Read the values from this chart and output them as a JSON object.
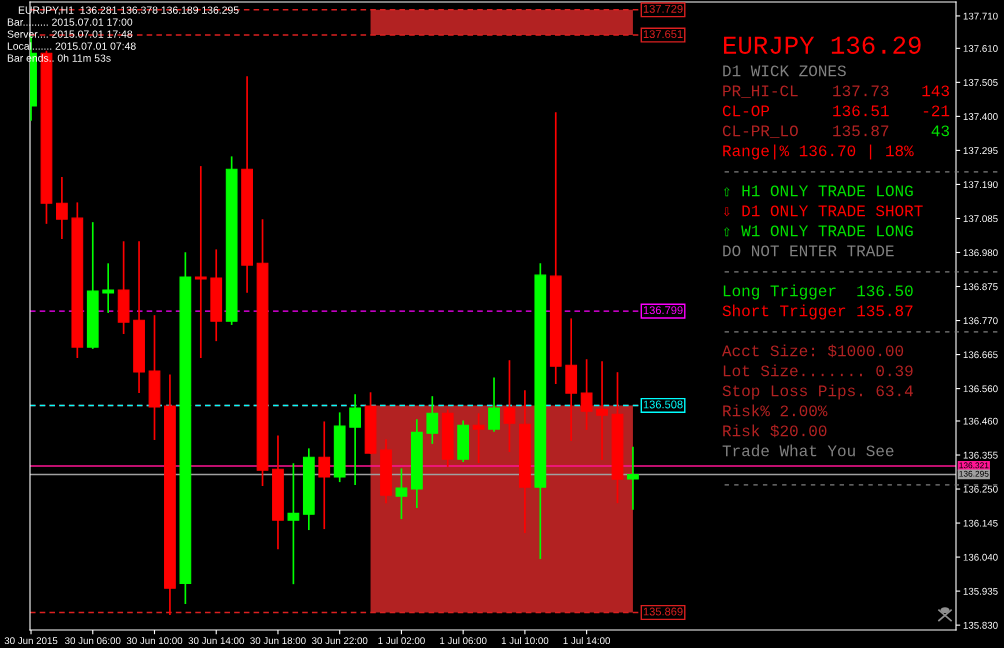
{
  "chart_data": {
    "type": "candlestick",
    "title": "EURJPY,H1  136.281 136.378 136.189 136.295",
    "x": [
      "2015-06-30T02:00",
      "2015-06-30T03:00",
      "2015-06-30T04:00",
      "2015-06-30T05:00",
      "2015-06-30T06:00",
      "2015-06-30T07:00",
      "2015-06-30T08:00",
      "2015-06-30T09:00",
      "2015-06-30T10:00",
      "2015-06-30T11:00",
      "2015-06-30T12:00",
      "2015-06-30T13:00",
      "2015-06-30T14:00",
      "2015-06-30T15:00",
      "2015-06-30T16:00",
      "2015-06-30T17:00",
      "2015-06-30T18:00",
      "2015-06-30T19:00",
      "2015-06-30T20:00",
      "2015-06-30T21:00",
      "2015-06-30T22:00",
      "2015-06-30T23:00",
      "2015-07-01T00:00",
      "2015-07-01T01:00",
      "2015-07-01T02:00",
      "2015-07-01T03:00",
      "2015-07-01T04:00",
      "2015-07-01T05:00",
      "2015-07-01T06:00",
      "2015-07-01T07:00",
      "2015-07-01T08:00",
      "2015-07-01T09:00",
      "2015-07-01T10:00",
      "2015-07-01T11:00",
      "2015-07-01T12:00",
      "2015-07-01T13:00",
      "2015-07-01T14:00",
      "2015-07-01T15:00",
      "2015-07-01T16:00",
      "2015-07-01T17:00"
    ],
    "ohlc": [
      [
        137.432,
        137.645,
        137.389,
        137.595
      ],
      [
        137.595,
        137.6,
        137.071,
        137.132
      ],
      [
        137.132,
        137.21,
        137.024,
        137.083
      ],
      [
        137.086,
        137.132,
        136.657,
        136.688
      ],
      [
        136.688,
        137.071,
        136.685,
        136.861
      ],
      [
        136.855,
        136.944,
        136.796,
        136.864
      ],
      [
        136.864,
        137.012,
        136.731,
        136.765
      ],
      [
        136.771,
        137.012,
        136.549,
        136.611
      ],
      [
        136.614,
        136.784,
        136.404,
        136.503
      ],
      [
        136.506,
        136.601,
        135.864,
        135.944
      ],
      [
        135.959,
        136.978,
        135.898,
        136.904
      ],
      [
        136.904,
        137.244,
        136.657,
        136.898
      ],
      [
        136.901,
        136.987,
        136.709,
        136.768
      ],
      [
        136.768,
        137.274,
        136.759,
        137.237
      ],
      [
        137.237,
        137.521,
        136.858,
        136.941
      ],
      [
        136.947,
        137.08,
        136.262,
        136.308
      ],
      [
        136.311,
        136.413,
        136.067,
        136.154
      ],
      [
        136.154,
        136.327,
        135.959,
        136.175
      ],
      [
        136.172,
        136.373,
        136.126,
        136.348
      ],
      [
        136.348,
        136.456,
        136.129,
        136.287
      ],
      [
        136.287,
        136.484,
        136.274,
        136.444
      ],
      [
        136.441,
        136.54,
        136.265,
        136.5
      ],
      [
        136.506,
        136.546,
        136.361,
        136.361
      ],
      [
        136.37,
        136.401,
        136.209,
        136.231
      ],
      [
        136.228,
        136.311,
        136.16,
        136.253
      ],
      [
        136.25,
        136.463,
        136.194,
        136.425
      ],
      [
        136.422,
        136.534,
        136.392,
        136.484
      ],
      [
        136.484,
        136.493,
        136.321,
        136.342
      ],
      [
        136.342,
        136.459,
        136.336,
        136.447
      ],
      [
        136.447,
        136.481,
        136.333,
        136.435
      ],
      [
        136.435,
        136.592,
        136.429,
        136.5
      ],
      [
        136.5,
        136.645,
        136.367,
        136.453
      ],
      [
        136.45,
        136.552,
        136.117,
        136.256
      ],
      [
        136.256,
        136.944,
        136.037,
        136.91
      ],
      [
        136.907,
        137.41,
        136.577,
        136.629
      ],
      [
        136.632,
        136.774,
        136.401,
        136.546
      ],
      [
        136.546,
        136.648,
        136.435,
        136.49
      ],
      [
        136.496,
        136.642,
        136.342,
        136.478
      ],
      [
        136.481,
        136.608,
        136.209,
        136.28
      ],
      [
        136.281,
        136.378,
        136.189,
        136.295
      ]
    ],
    "colors": [
      "#00ff00",
      "#ff0000",
      "#ff0000",
      "#ff0000",
      "#00ff00",
      "#00ff00",
      "#ff0000",
      "#ff0000",
      "#ff0000",
      "#ff0000",
      "#00ff00",
      "#ff0000",
      "#ff0000",
      "#00ff00",
      "#ff0000",
      "#ff0000",
      "#ff0000",
      "#00ff00",
      "#00ff00",
      "#ff0000",
      "#00ff00",
      "#00ff00",
      "#ff0000",
      "#ff0000",
      "#00ff00",
      "#00ff00",
      "#00ff00",
      "#ff0000",
      "#00ff00",
      "#ff0000",
      "#00ff00",
      "#ff0000",
      "#ff0000",
      "#00ff00",
      "#ff0000",
      "#ff0000",
      "#ff0000",
      "#ff0000",
      "#ff0000",
      "#00ff00"
    ],
    "xlim": [
      "2015-06-30T01:56",
      "2015-07-02T13:56"
    ],
    "xticks": [
      {
        "value": "2015-06-30T02:00",
        "label": "30 Jun 2015"
      },
      {
        "value": "2015-06-30T06:00",
        "label": "30 Jun 06:00"
      },
      {
        "value": "2015-06-30T10:00",
        "label": "30 Jun 10:00"
      },
      {
        "value": "2015-06-30T14:00",
        "label": "30 Jun 14:00"
      },
      {
        "value": "2015-06-30T18:00",
        "label": "30 Jun 18:00"
      },
      {
        "value": "2015-06-30T22:00",
        "label": "30 Jun 22:00"
      },
      {
        "value": "2015-07-01T02:00",
        "label": "1 Jul 02:00"
      },
      {
        "value": "2015-07-01T06:00",
        "label": "1 Jul 06:00"
      },
      {
        "value": "2015-07-01T10:00",
        "label": "1 Jul 10:00"
      },
      {
        "value": "2015-07-01T14:00",
        "label": "1 Jul 14:00"
      }
    ],
    "ylim": [
      135.815,
      137.753
    ],
    "yticks": [
      {
        "value": 137.71,
        "label": "137.710"
      },
      {
        "value": 137.61,
        "label": "137.610"
      },
      137.505,
      {
        "value": 137.4,
        "label": "137.400"
      },
      137.295,
      {
        "value": 137.19,
        "label": "137.190"
      },
      137.085,
      {
        "value": 136.98,
        "label": "136.980"
      },
      136.875,
      {
        "value": 136.77,
        "label": "136.770"
      },
      136.665,
      {
        "value": 136.56,
        "label": "136.560"
      },
      {
        "value": 136.46,
        "label": "136.460"
      },
      136.355,
      {
        "value": 136.25,
        "label": "136.250"
      },
      136.145,
      {
        "value": 136.04,
        "label": "136.040"
      },
      135.935,
      {
        "value": 135.83,
        "label": "135.830"
      }
    ],
    "bands": [
      {
        "axis": "y",
        "from": 137.651,
        "to": 137.729,
        "color": "#b22222"
      },
      {
        "axis": "y",
        "from": 135.869,
        "to": 136.508,
        "color": "#b22222"
      }
    ],
    "ref_lines": [
      {
        "axis": "y",
        "value": 137.729,
        "label": "137.729",
        "color": "#dc2020",
        "line_style": "dashed"
      },
      {
        "axis": "y",
        "value": 137.651,
        "label": "137.651",
        "color": "#dc2020",
        "line_style": "dashed"
      },
      {
        "axis": "y",
        "value": 136.799,
        "label": "136.799",
        "color": "#ff00ff",
        "line_style": "dashed"
      },
      {
        "axis": "y",
        "value": 136.508,
        "label": null,
        "color": "#dc2020",
        "line_style": "dashed"
      },
      {
        "axis": "y",
        "value": 136.508,
        "label": "136.508",
        "color": "#00ffff",
        "line_style": "dashed"
      },
      {
        "axis": "y",
        "value": 135.869,
        "label": "135.869",
        "color": "#dc2020",
        "line_style": "dashed"
      },
      {
        "axis": "y",
        "value": 136.321,
        "label": "136.321",
        "color": "#ff1493",
        "line_style": "solid"
      },
      {
        "axis": "y",
        "value": 136.295,
        "label": "136.295",
        "color": "#a0a0a0",
        "line_style": "solid"
      }
    ],
    "annotations": [
      "Bar......... 2015.07.01 17:00",
      "Server.... 2015.07.01 17:48",
      "Local....... 2015.07.01 07:48",
      "Bar ends.. 0h 11m 53s",
      "EURJPY 136.29",
      "D1 WICK ZONES",
      "PR_HI-CL",
      "137.73",
      "143",
      "CL-OP",
      "136.51",
      "-21",
      "CL-PR_LO",
      "135.87",
      "43",
      "Range|% 136.70 | 18%",
      "-----------------------------",
      "⇧ H1 ONLY TRADE LONG",
      "⇩ D1 ONLY TRADE SHORT",
      "⇧ W1 ONLY TRADE LONG",
      "DO NOT ENTER TRADE",
      "-----------------------------",
      "Long Trigger  136.50",
      "Short Trigger 135.87",
      "-----------------------------",
      "Acct Size: $1000.00",
      "Lot Size....... 0.39",
      "Stop Loss Pips. 63.4",
      "Risk% 2.00%",
      "Risk $20.00",
      "Trade What You See",
      "-----------------------------"
    ],
    "grid": false,
    "legend": false
  }
}
